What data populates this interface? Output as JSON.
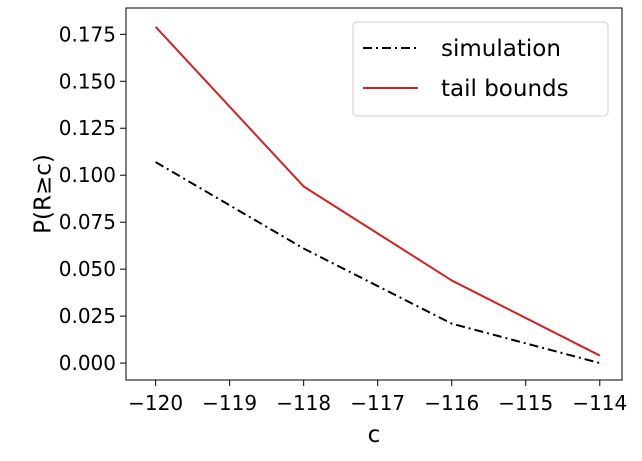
{
  "chart_data": {
    "type": "line",
    "title": "",
    "xlabel": "c",
    "ylabel": "P(R≥c)",
    "x": [
      -120,
      -118,
      -116,
      -114
    ],
    "xlim": [
      -120.4,
      -113.7
    ],
    "ylim": [
      -0.009,
      0.189
    ],
    "xticks": [
      -120,
      -119,
      -118,
      -117,
      -116,
      -115,
      -114
    ],
    "xtick_labels": [
      "−120",
      "−119",
      "−118",
      "−117",
      "−116",
      "−115",
      "−114"
    ],
    "yticks": [
      0.0,
      0.025,
      0.05,
      0.075,
      0.1,
      0.125,
      0.15,
      0.175
    ],
    "ytick_labels": [
      "0.000",
      "0.025",
      "0.050",
      "0.075",
      "0.100",
      "0.125",
      "0.150",
      "0.175"
    ],
    "grid": false,
    "legend_position": "top-right",
    "series": [
      {
        "name": "simulation",
        "values": [
          0.107,
          0.061,
          0.021,
          0.0
        ],
        "color": "#000000",
        "style": "dash-dot"
      },
      {
        "name": "tail bounds",
        "values": [
          0.179,
          0.094,
          0.044,
          0.004
        ],
        "color": "#d62020",
        "style": "solid"
      }
    ]
  }
}
